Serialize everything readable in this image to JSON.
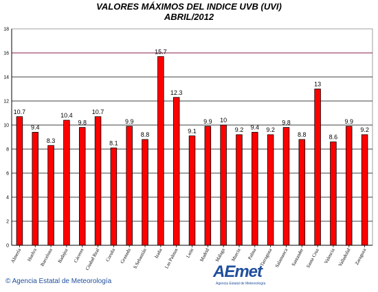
{
  "chart_data": {
    "type": "bar",
    "title": "VALORES MÁXIMOS DEL INDICE UVB (UVI)",
    "subtitle": "ABRIL/2012",
    "xlabel": "",
    "ylabel": "",
    "ylim": [
      0,
      18
    ],
    "yticks": [
      0,
      2,
      4,
      6,
      8,
      10,
      12,
      14,
      16,
      18
    ],
    "grid": true,
    "bar_color": "#ff0000",
    "highlight_line_value": 16,
    "highlight_line_color": "#8b1a4a",
    "categories": [
      "Almería",
      "Huelva",
      "Barcelona",
      "Badajoz",
      "Cáceres",
      "Ciudad Real",
      "Coruña",
      "Granada",
      "S.Sebastián",
      "Izaña",
      "Las Palmas",
      "León",
      "Madrid",
      "Málaga",
      "Murcia",
      "Palma",
      "Tarragona",
      "Salamanca",
      "Santander",
      "Santa Cruz",
      "Valencia",
      "Valladolid",
      "Zaragoza"
    ],
    "values": [
      10.7,
      9.4,
      8.3,
      10.4,
      9.8,
      10.7,
      8.1,
      9.9,
      8.8,
      15.7,
      12.3,
      9.1,
      9.9,
      10,
      9.2,
      9.4,
      9.2,
      9.8,
      8.8,
      13,
      8.6,
      9.9,
      9.2
    ],
    "labels": [
      "10.7",
      "9.4",
      "8.3",
      "10.4",
      "9.8",
      "10.7",
      "8.1",
      "9.9",
      "8.8",
      "15.7",
      "12.3",
      "9.1",
      "9.9",
      "10",
      "9.2",
      "9.4",
      "9.2",
      "9.8",
      "8.8",
      "13",
      "8.6",
      "9.9",
      "9.2"
    ]
  },
  "footer": {
    "credit": "© Agencia Estatal de Meteorología",
    "logo_text": "AEmet",
    "logo_sub": "Agencia Estatal de Meteorología",
    "logo_color": "#1f4e9c"
  }
}
